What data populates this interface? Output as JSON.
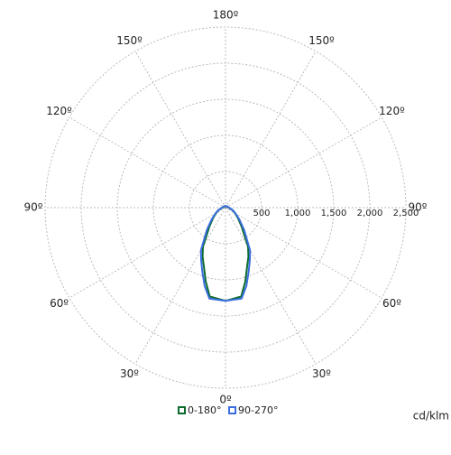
{
  "chart_data": {
    "type": "polar",
    "unit": "cd/klm",
    "rlim": [
      0,
      2500
    ],
    "rticks": [
      {
        "value": 500,
        "label": "500"
      },
      {
        "value": 1000,
        "label": "1,000"
      },
      {
        "value": 1500,
        "label": "1,500"
      },
      {
        "value": 2000,
        "label": "2,000"
      },
      {
        "value": 2500,
        "label": "2,500"
      }
    ],
    "angle_ticks": [
      {
        "value": 0,
        "label": "0º"
      },
      {
        "value": 30,
        "label": "30º"
      },
      {
        "value": 60,
        "label": "60º"
      },
      {
        "value": 90,
        "label": "90º"
      },
      {
        "value": 120,
        "label": "120º"
      },
      {
        "value": 150,
        "label": "150º"
      },
      {
        "value": 180,
        "label": "180º"
      }
    ],
    "grid": true,
    "angles": [
      0,
      10,
      15,
      20,
      25,
      30,
      40,
      50,
      60,
      70,
      80,
      90,
      120,
      150,
      180
    ],
    "series": [
      {
        "name": "0-180°",
        "color": "#0b6b2c",
        "values": [
          1290,
          1250,
          1060,
          875,
          750,
          625,
          350,
          225,
          150,
          100,
          60,
          40,
          25,
          20,
          20
        ]
      },
      {
        "name": "90-270°",
        "color": "#3a6ee0",
        "values": [
          1290,
          1280,
          1120,
          940,
          800,
          680,
          400,
          250,
          160,
          110,
          70,
          50,
          30,
          25,
          25
        ]
      }
    ]
  }
}
